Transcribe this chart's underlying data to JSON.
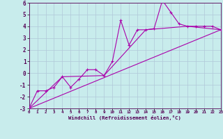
{
  "xlabel": "Windchill (Refroidissement éolien,°C)",
  "background_color": "#c8ecec",
  "grid_color": "#b0c8d8",
  "line_color": "#aa00aa",
  "xlim": [
    0,
    23
  ],
  "ylim": [
    -3,
    6
  ],
  "xticks": [
    0,
    1,
    2,
    3,
    4,
    5,
    6,
    7,
    8,
    9,
    10,
    11,
    12,
    13,
    14,
    15,
    16,
    17,
    18,
    19,
    20,
    21,
    22,
    23
  ],
  "yticks": [
    -3,
    -2,
    -1,
    0,
    1,
    2,
    3,
    4,
    5,
    6
  ],
  "series1_x": [
    0,
    1,
    2,
    3,
    4,
    5,
    6,
    7,
    8,
    9,
    10,
    11,
    12,
    13,
    14,
    15,
    16,
    17,
    18,
    19,
    20,
    21,
    22,
    23
  ],
  "series1_y": [
    -3.0,
    -1.5,
    -1.5,
    -1.2,
    -0.3,
    -1.2,
    -0.5,
    0.3,
    0.3,
    -0.2,
    1.0,
    4.5,
    2.4,
    3.7,
    3.7,
    3.8,
    6.2,
    5.2,
    4.2,
    4.0,
    4.0,
    4.0,
    4.0,
    3.7
  ],
  "series2_x": [
    0,
    23
  ],
  "series2_y": [
    -3.0,
    3.7
  ],
  "series3_x": [
    0,
    4,
    9,
    14,
    19,
    23
  ],
  "series3_y": [
    -3.0,
    -0.3,
    -0.2,
    3.7,
    4.0,
    3.7
  ]
}
